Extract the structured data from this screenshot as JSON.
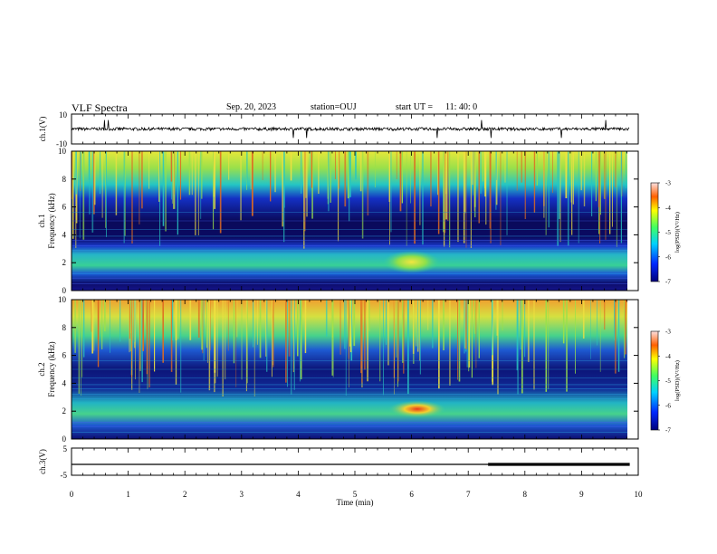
{
  "header": {
    "title": "VLF Spectra",
    "date": "Sep. 20, 2023",
    "station": "station=OUJ",
    "start_label": "start  UT  =",
    "start_time": "11: 40: 0"
  },
  "chart_data": [
    {
      "type": "line",
      "panel": "ch1-waveform",
      "ylabel": "ch.1(V)",
      "ylim": [
        -10,
        10
      ],
      "y_tick_labels": [
        "10",
        "-10"
      ],
      "xlim": [
        0,
        10
      ],
      "baseline": 0,
      "approx_amplitude": 1.0,
      "grid": false
    },
    {
      "type": "heatmap",
      "panel": "ch1-spectrogram",
      "ylabel_line1": "ch.1",
      "ylabel_line2": "Frequency (kHz)",
      "ylim": [
        0,
        10
      ],
      "y_tick_labels": [
        "0",
        "2",
        "4",
        "6",
        "8",
        "10"
      ],
      "xlim": [
        0,
        10
      ],
      "data_end": 9.85,
      "colorbar": {
        "label": "log(PSD)(V²/Hz)",
        "range": [
          -7,
          -3
        ],
        "tick_labels": [
          "-3",
          "-4",
          "-5",
          "-6",
          "-7"
        ]
      },
      "features": [
        {
          "desc": "enhanced band",
          "freq_khz": [
            1.2,
            2.8
          ],
          "log_psd": -5.5
        },
        {
          "desc": "intense blob",
          "time_min": [
            5.5,
            6.5
          ],
          "freq_khz": [
            1.5,
            2.6
          ],
          "log_psd": -4.8
        },
        {
          "desc": "high-frequency noise",
          "freq_khz": [
            6.5,
            10
          ],
          "log_psd": -4.5
        }
      ]
    },
    {
      "type": "heatmap",
      "panel": "ch2-spectrogram",
      "ylabel_line1": "ch.2",
      "ylabel_line2": "Frequency (kHz)",
      "ylim": [
        0,
        10
      ],
      "y_tick_labels": [
        "0",
        "2",
        "4",
        "6",
        "8",
        "10"
      ],
      "xlim": [
        0,
        10
      ],
      "data_end": 9.85,
      "colorbar": {
        "label": "log(PSD)(V²/Hz)",
        "range": [
          -7,
          -3
        ],
        "tick_labels": [
          "-3",
          "-4",
          "-5",
          "-6",
          "-7"
        ]
      },
      "features": [
        {
          "desc": "enhanced band",
          "freq_khz": [
            1.3,
            2.6
          ],
          "log_psd": -5.5
        },
        {
          "desc": "intense blob",
          "time_min": [
            5.6,
            6.6
          ],
          "freq_khz": [
            1.8,
            2.5
          ],
          "log_psd": -4.2
        },
        {
          "desc": "high-frequency noise",
          "freq_khz": [
            6.5,
            10
          ],
          "log_psd": -4.0
        }
      ]
    },
    {
      "type": "line",
      "panel": "ch3-waveform",
      "ylabel": "ch.3(V)",
      "ylim": [
        -5,
        5
      ],
      "y_tick_labels": [
        "5",
        "-5"
      ],
      "xlim": [
        0,
        10
      ],
      "x": [
        0,
        7.35,
        7.35,
        9.85
      ],
      "y": [
        -1.0,
        -1.0,
        -1.0,
        -1.0
      ],
      "thick_from": 7.35
    }
  ],
  "xaxis": {
    "label": "Time (min)",
    "tick_labels": [
      "0",
      "1",
      "2",
      "3",
      "4",
      "5",
      "6",
      "7",
      "8",
      "9",
      "10"
    ],
    "range": [
      0,
      10
    ]
  }
}
